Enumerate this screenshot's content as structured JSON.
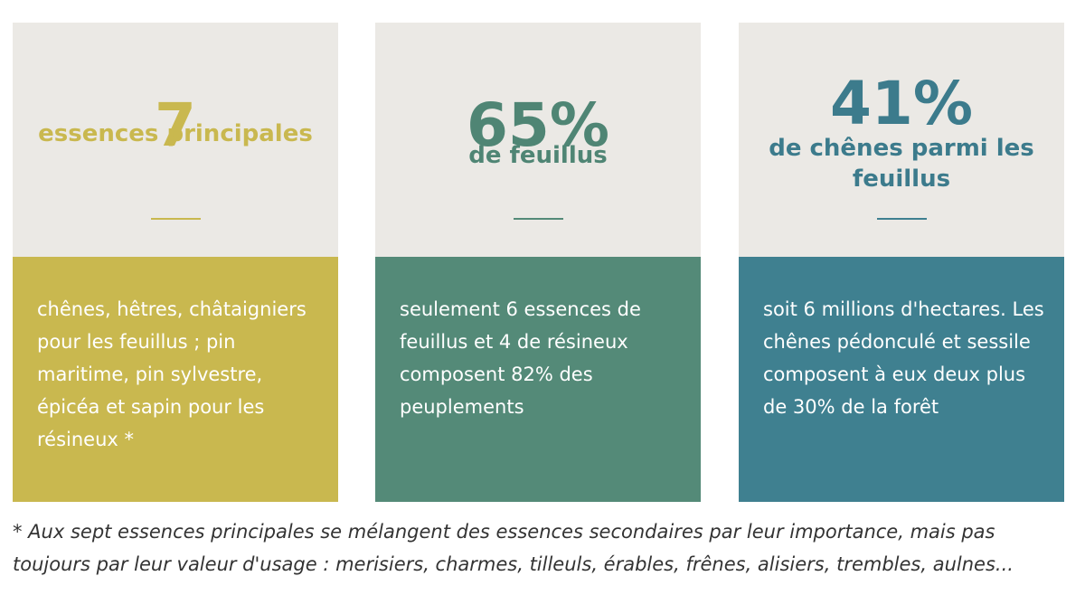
{
  "cards": [
    {
      "stat": "7",
      "label": "essences principales",
      "text": "chênes, hêtres, châtaigniers pour les feuillus ; pin maritime, pin sylvestre, épicéa et sapin pour les résineux *"
    },
    {
      "stat": "65%",
      "label": "de feuillus",
      "text": "seulement 6 essences de feuillus et 4 de résineux composent 82% des peuplements"
    },
    {
      "stat": "41%",
      "label": "de chênes parmi les feuillus",
      "text": "soit 6 millions d'hectares. Les chênes pédonculé et sessile composent à eux deux plus de 30% de la forêt"
    }
  ],
  "footnote": "* Aux sept essences principales se mélangent des essences secondaires par leur importance, mais pas toujours par leur valeur d'usage : merisiers, charmes, tilleuls, érables, frênes, alisiers, trembles, aulnes..."
}
